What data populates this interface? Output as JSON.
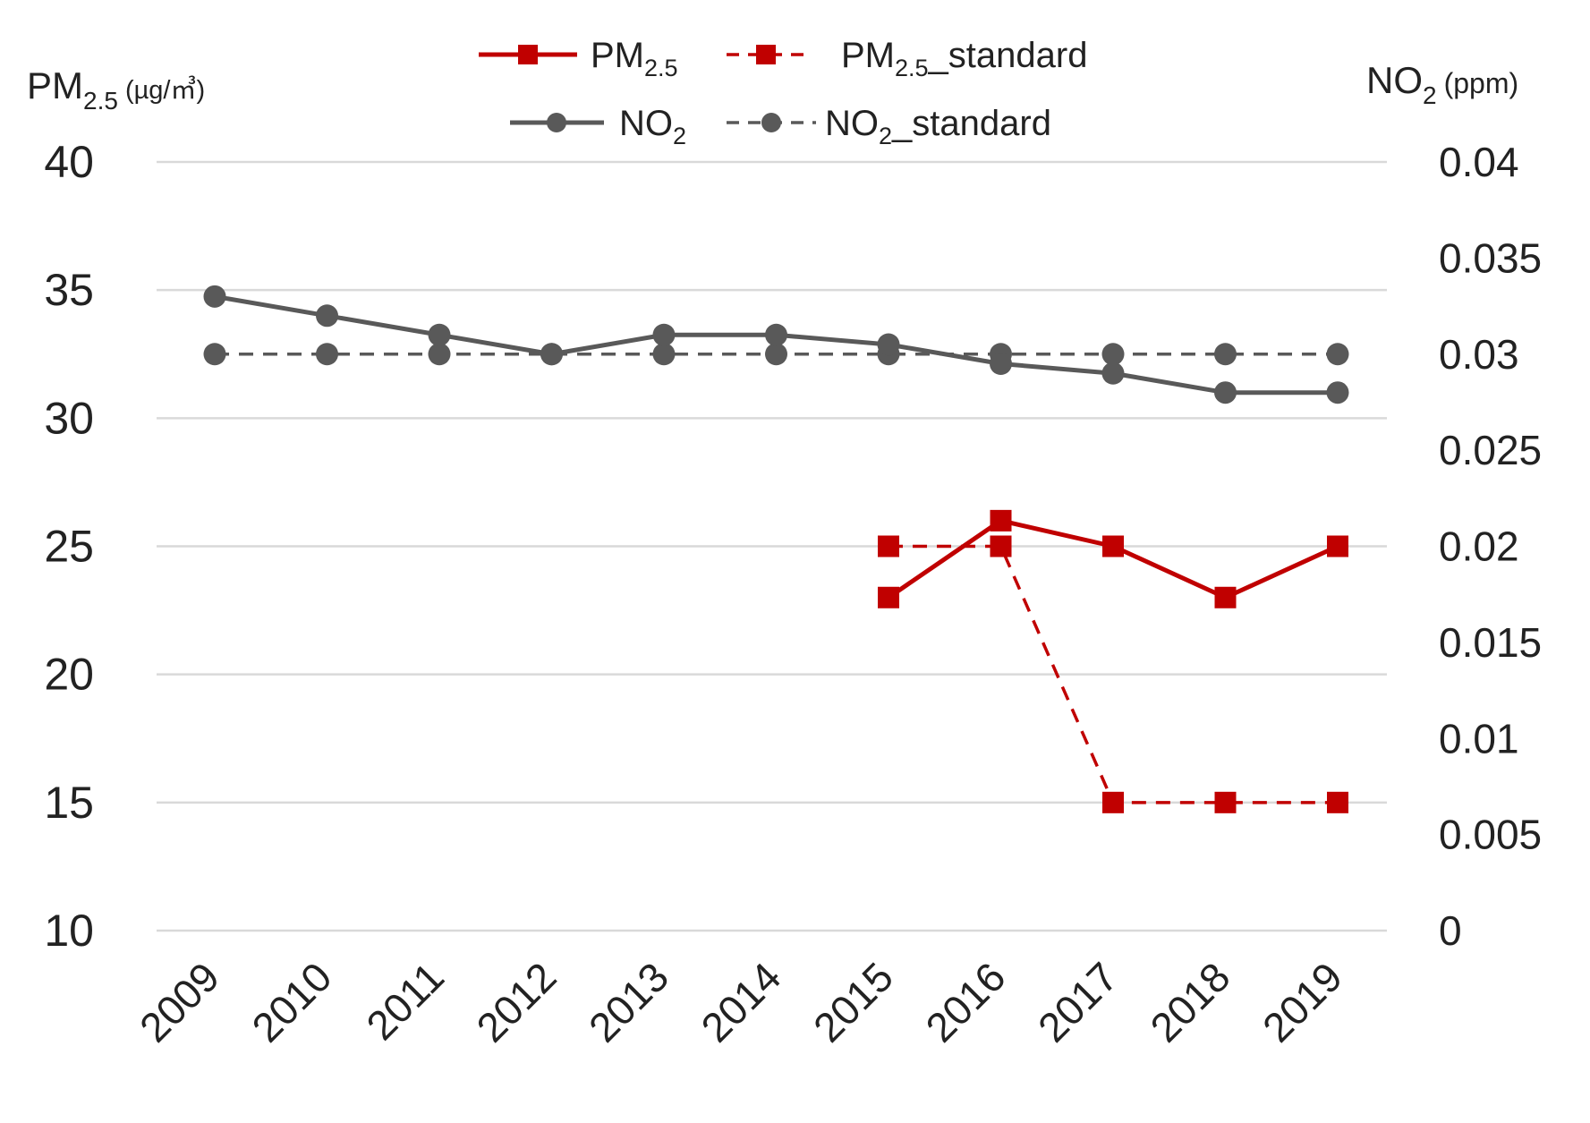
{
  "chart_data": {
    "type": "line",
    "categories": [
      "2009",
      "2010",
      "2011",
      "2012",
      "2013",
      "2014",
      "2015",
      "2016",
      "2017",
      "2018",
      "2019"
    ],
    "left_axis": {
      "label_main": "PM",
      "label_sub": "2.5",
      "label_unit": "(µg/㎥)",
      "ylim": [
        10,
        40
      ],
      "ticks": [
        "10",
        "15",
        "20",
        "25",
        "30",
        "35",
        "40"
      ]
    },
    "right_axis": {
      "label_main": "NO",
      "label_sub": "2",
      "label_unit": "(ppm)",
      "ylim": [
        0,
        0.04
      ],
      "ticks": [
        "0",
        "0.005",
        "0.01",
        "0.015",
        "0.02",
        "0.025",
        "0.03",
        "0.035",
        "0.04"
      ]
    },
    "grid": true,
    "legend_position": "top-center",
    "series": [
      {
        "name": "PM2.5",
        "legend_main": "PM",
        "legend_sub": "2.5",
        "legend_suffix": "",
        "axis": "left",
        "color": "#c00000",
        "dash": "solid",
        "marker": "square",
        "values": [
          null,
          null,
          null,
          null,
          null,
          null,
          23,
          26,
          25,
          23,
          25
        ]
      },
      {
        "name": "PM2.5_standard",
        "legend_main": "PM",
        "legend_sub": "2.5",
        "legend_suffix": "_standard",
        "axis": "left",
        "color": "#c00000",
        "dash": "dashed",
        "marker": "square",
        "values": [
          null,
          null,
          null,
          null,
          null,
          null,
          25,
          25,
          15,
          15,
          15
        ]
      },
      {
        "name": "NO2",
        "legend_main": "NO",
        "legend_sub": "2",
        "legend_suffix": "",
        "axis": "right",
        "color": "#595959",
        "dash": "solid",
        "marker": "circle",
        "values": [
          0.033,
          0.032,
          0.031,
          0.03,
          0.031,
          0.031,
          0.0305,
          0.0295,
          0.029,
          0.028,
          0.028
        ]
      },
      {
        "name": "NO2_standard",
        "legend_main": "NO",
        "legend_sub": "2",
        "legend_suffix": "_standard",
        "axis": "right",
        "color": "#595959",
        "dash": "dashed",
        "marker": "circle",
        "values": [
          0.03,
          0.03,
          0.03,
          0.03,
          0.03,
          0.03,
          0.03,
          0.03,
          0.03,
          0.03,
          0.03
        ]
      }
    ]
  }
}
